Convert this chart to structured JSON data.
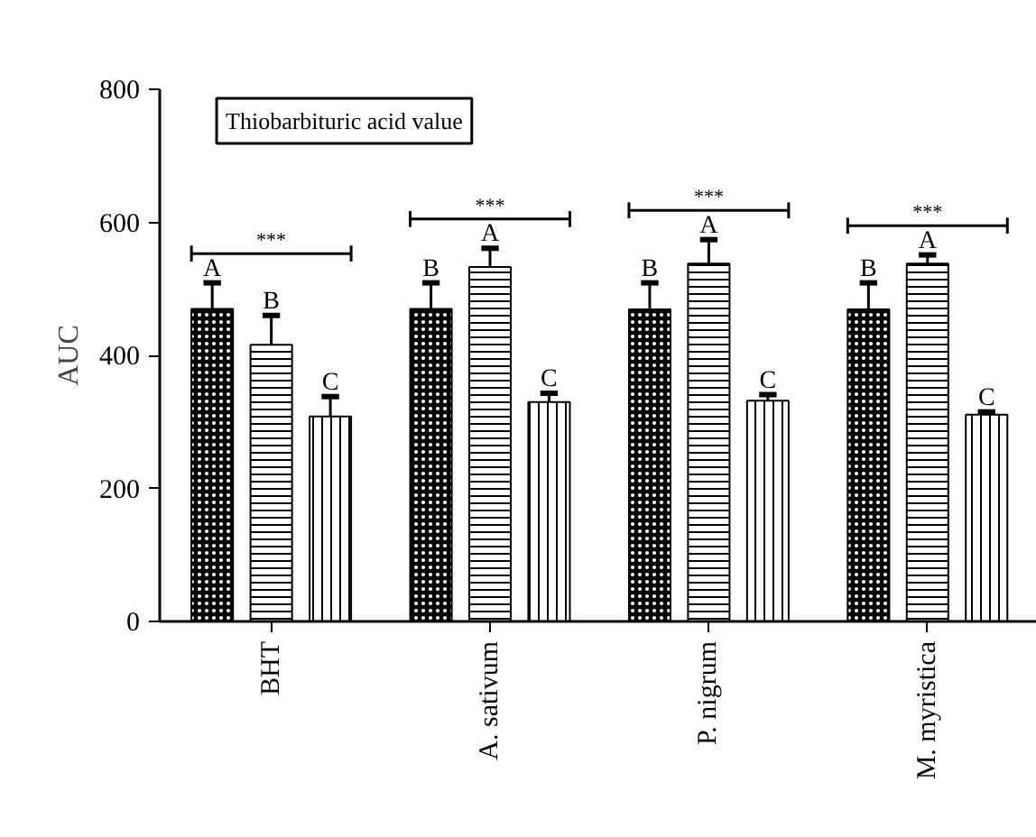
{
  "chart_data": {
    "type": "bar",
    "ylabel": "AUC",
    "categories": [
      "BHT",
      "A. sativum",
      "P. nigrum",
      "M. myristica"
    ],
    "series": [
      {
        "color": "#000000",
        "values": [
          470,
          470,
          469,
          469
        ],
        "errors": [
          39,
          39,
          40,
          40
        ],
        "value_labels": [
          "A",
          "B",
          "B",
          "B"
        ]
      },
      {
        "color": "#000000",
        "values": [
          416,
          533,
          538,
          538
        ],
        "errors": [
          44,
          28,
          36,
          13
        ],
        "value_labels": [
          "B",
          "A",
          "A",
          "A"
        ]
      },
      {
        "color": "#000000",
        "values": [
          308,
          330,
          332,
          311
        ],
        "errors": [
          30,
          13,
          9,
          4
        ],
        "value_labels": [
          "C",
          "C",
          "C",
          "C"
        ]
      }
    ],
    "ylim": [
      0,
      800
    ],
    "yticks": [
      0,
      200,
      400,
      600,
      800
    ],
    "grid": false,
    "annotations": [
      "Thiobarbituric acid value",
      "***",
      "***",
      "***",
      "***"
    ]
  }
}
